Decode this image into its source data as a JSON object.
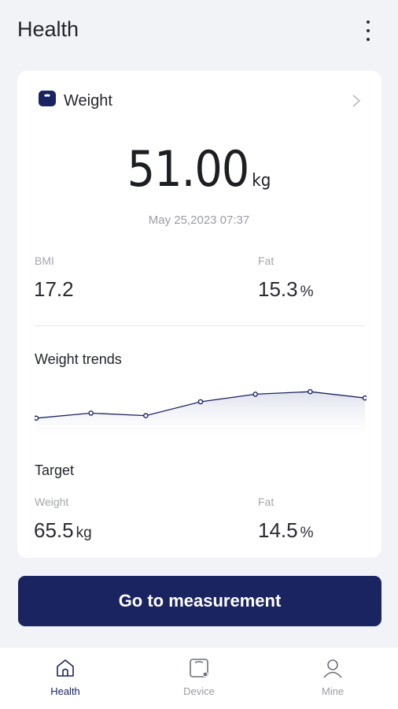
{
  "header": {
    "title": "Health"
  },
  "weight_card": {
    "title": "Weight",
    "value": "51.00",
    "unit": "kg",
    "timestamp": "May 25,2023 07:37",
    "bmi": {
      "label": "BMI",
      "value": "17.2"
    },
    "fat": {
      "label": "Fat",
      "value": "15.3",
      "unit": "%"
    }
  },
  "trends": {
    "title": "Weight trends",
    "chart_data": {
      "type": "area",
      "values": [
        49.2,
        49.6,
        49.4,
        50.5,
        51.1,
        51.3,
        50.8
      ],
      "ylim": [
        47.5,
        52.5
      ],
      "color": "#1a2460",
      "fill": "#dfe1ec"
    }
  },
  "target": {
    "title": "Target",
    "weight": {
      "label": "Weight",
      "value": "65.5",
      "unit": "kg"
    },
    "fat": {
      "label": "Fat",
      "value": "14.5",
      "unit": "%"
    }
  },
  "cta": {
    "label": "Go to measurement"
  },
  "nav": {
    "items": [
      {
        "label": "Health",
        "icon": "home-icon",
        "active": true
      },
      {
        "label": "Device",
        "icon": "device-icon",
        "active": false
      },
      {
        "label": "Mine",
        "icon": "person-icon",
        "active": false
      }
    ]
  },
  "colors": {
    "accent": "#1a2460",
    "background": "#f2f3f7",
    "card": "#ffffff"
  }
}
